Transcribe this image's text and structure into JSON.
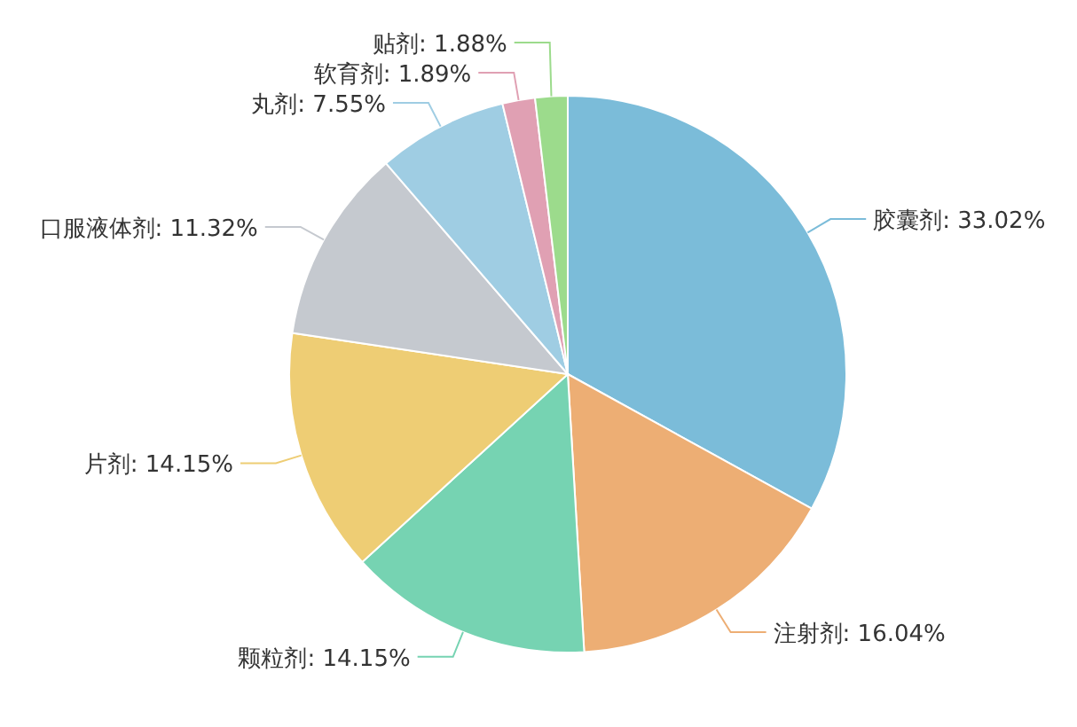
{
  "chart_data": {
    "type": "pie",
    "categories": [
      "胶囊剂",
      "注射剂",
      "颗粒剂",
      "片剂",
      "口服液体剂",
      "丸剂",
      "软育剂",
      "贴剂"
    ],
    "values": [
      33.02,
      16.04,
      14.15,
      14.15,
      11.32,
      7.55,
      1.89,
      1.88
    ],
    "value_labels": [
      ": 33.02%",
      ": 16.04%",
      ": 14.15%",
      ": 14.15%",
      ": 11.32%",
      ": 7.55%",
      ": 1.89%",
      ": 1.88%"
    ],
    "colors": [
      "#7bbcd9",
      "#edae74",
      "#76d3b2",
      "#eecd74",
      "#c5c9cf",
      "#9fcde3",
      "#e0a0b3",
      "#9cdb8c"
    ]
  }
}
